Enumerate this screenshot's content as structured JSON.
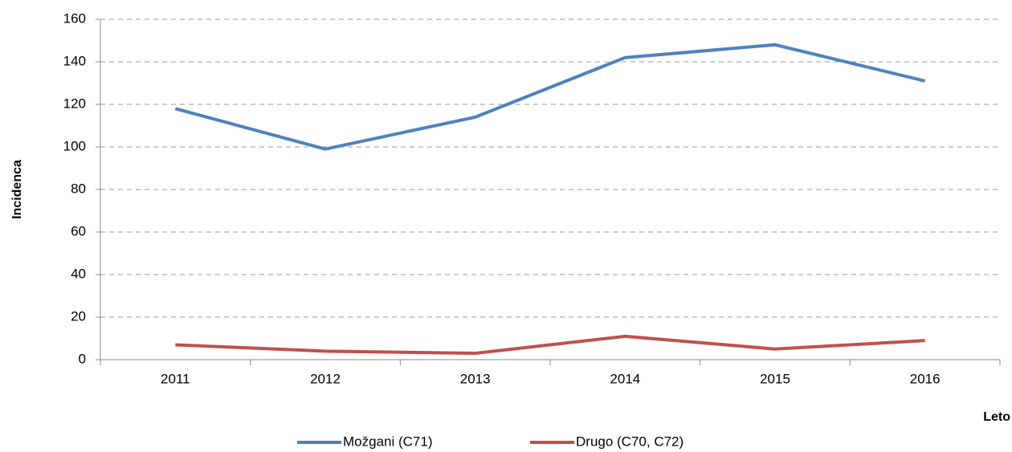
{
  "chart_data": {
    "type": "line",
    "x_label": "Leto",
    "y_label": "Incidenca",
    "categories": [
      "2011",
      "2012",
      "2013",
      "2014",
      "2015",
      "2016"
    ],
    "series": [
      {
        "name": "Možgani (C71)",
        "color": "#4f81bd",
        "values": [
          118,
          99,
          114,
          142,
          148,
          131
        ]
      },
      {
        "name": "Drugo (C70, C72)",
        "color": "#c0504d",
        "values": [
          7,
          4,
          3,
          11,
          5,
          9
        ]
      }
    ],
    "ylim": [
      0,
      160
    ],
    "yticks": [
      0,
      20,
      40,
      60,
      80,
      100,
      120,
      140,
      160
    ],
    "grid": true,
    "legend": "bottom"
  }
}
